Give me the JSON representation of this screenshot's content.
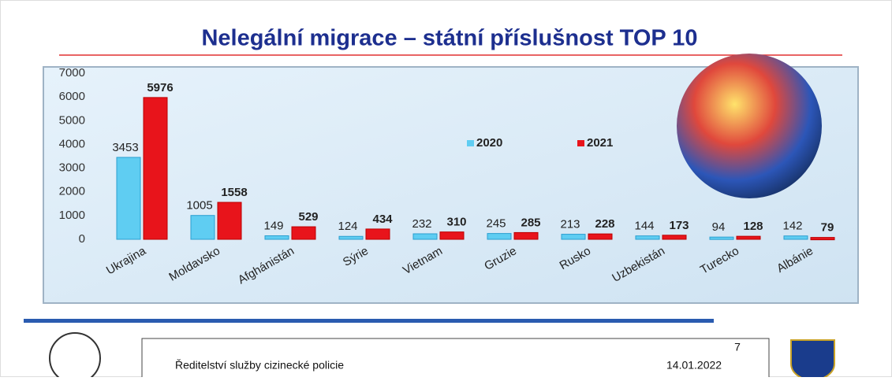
{
  "chart_data": {
    "type": "bar",
    "title": "Nelegální migrace – státní příslušnost TOP 10",
    "categories": [
      "Ukrajina",
      "Moldavsko",
      "Afghánistán",
      "Sýrie",
      "Vietnam",
      "Gruzie",
      "Rusko",
      "Uzbekistán",
      "Turecko",
      "Albánie"
    ],
    "series": [
      {
        "name": "2020",
        "color": "#5fcdf2",
        "values": [
          3453,
          1005,
          149,
          124,
          232,
          245,
          213,
          144,
          94,
          142
        ]
      },
      {
        "name": "2021",
        "color": "#e8141b",
        "values": [
          5976,
          1558,
          529,
          434,
          310,
          285,
          228,
          173,
          128,
          79
        ]
      }
    ],
    "ylim": [
      0,
      7000
    ],
    "yticks": [
      0,
      1000,
      2000,
      3000,
      4000,
      5000,
      6000,
      7000
    ],
    "grid": false
  },
  "footer": {
    "organization": "Ředitelství služby cizinecké policie",
    "page": "7",
    "date": "14.01.2022"
  }
}
